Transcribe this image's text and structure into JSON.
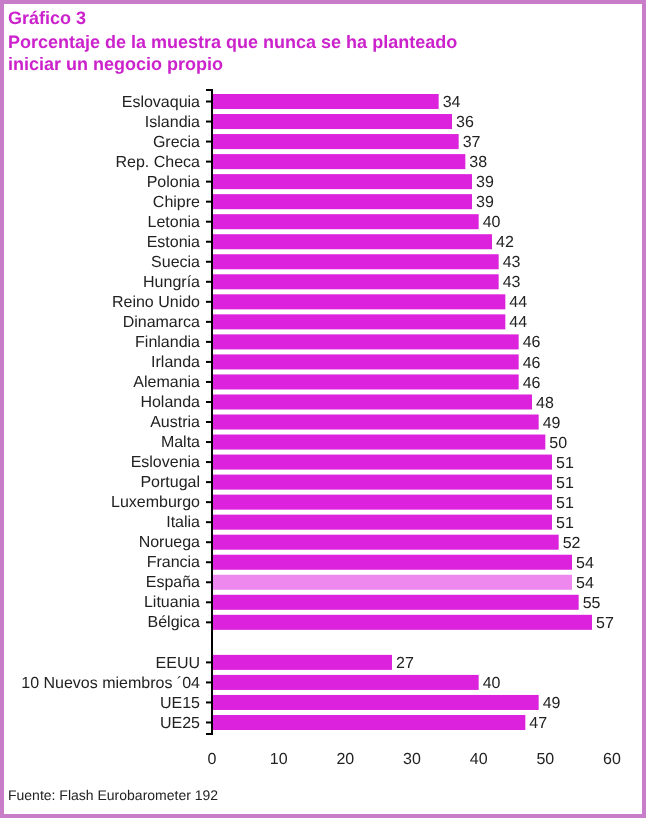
{
  "chart_data": {
    "type": "bar",
    "orientation": "horizontal",
    "title": "Gráfico 3",
    "subtitle": "Porcentaje de la muestra que nunca se ha planteado iniciar un negocio propio",
    "categories": [
      "Eslovaquia",
      "Islandia",
      "Grecia",
      "Rep. Checa",
      "Polonia",
      "Chipre",
      "Letonia",
      "Estonia",
      "Suecia",
      "Hungría",
      "Reino Unido",
      "Dinamarca",
      "Finlandia",
      "Irlanda",
      "Alemania",
      "Holanda",
      "Austria",
      "Malta",
      "Eslovenia",
      "Portugal",
      "Luxemburgo",
      "Italia",
      "Noruega",
      "Francia",
      "España",
      "Lituania",
      "Bélgica",
      null,
      "EEUU",
      "10 Nuevos miembros ´04",
      "UE15",
      "UE25"
    ],
    "values": [
      34,
      36,
      37,
      38,
      39,
      39,
      40,
      42,
      43,
      43,
      44,
      44,
      46,
      46,
      46,
      48,
      49,
      50,
      51,
      51,
      51,
      51,
      52,
      54,
      54,
      55,
      57,
      null,
      27,
      40,
      49,
      47
    ],
    "colors": [
      "#dd22dd",
      "#dd22dd",
      "#dd22dd",
      "#dd22dd",
      "#dd22dd",
      "#dd22dd",
      "#dd22dd",
      "#dd22dd",
      "#dd22dd",
      "#dd22dd",
      "#dd22dd",
      "#dd22dd",
      "#dd22dd",
      "#dd22dd",
      "#dd22dd",
      "#dd22dd",
      "#dd22dd",
      "#dd22dd",
      "#dd22dd",
      "#dd22dd",
      "#dd22dd",
      "#dd22dd",
      "#dd22dd",
      "#dd22dd",
      "#ee88ee",
      "#dd22dd",
      "#dd22dd",
      null,
      "#dd22dd",
      "#dd22dd",
      "#dd22dd",
      "#dd22dd"
    ],
    "xlim": [
      0,
      60
    ],
    "xticks": [
      0,
      10,
      20,
      30,
      40,
      50,
      60
    ],
    "data_labels": true,
    "annotations": [
      "Fuente: Flash Eurobarometer 192"
    ]
  }
}
